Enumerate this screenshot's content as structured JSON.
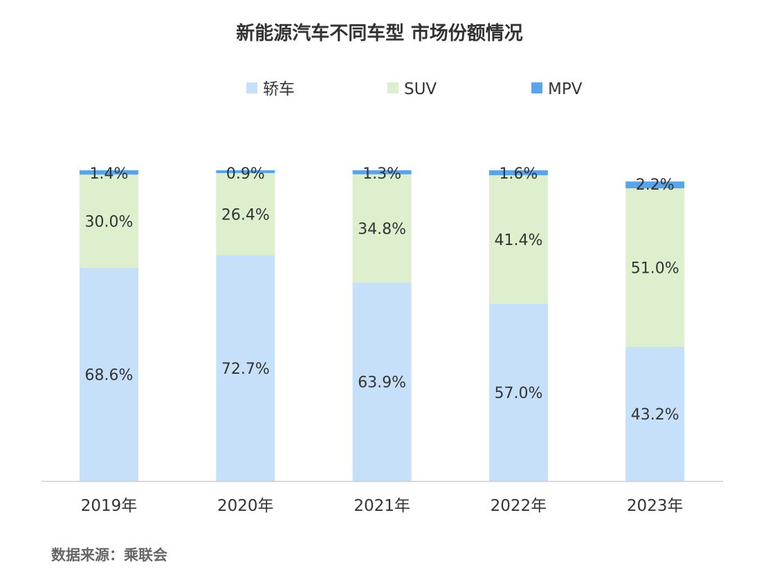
{
  "chart_data": {
    "type": "bar",
    "stacked": true,
    "title": "新能源汽车不同车型  市场份额情况",
    "categories": [
      "2019年",
      "2020年",
      "2021年",
      "2022年",
      "2023年"
    ],
    "series": [
      {
        "name": "轿车",
        "color": "#C6E0FA",
        "values": [
          68.6,
          72.7,
          63.9,
          57.0,
          43.2
        ]
      },
      {
        "name": "SUV",
        "color": "#DDEFCC",
        "values": [
          30.0,
          26.4,
          34.8,
          41.4,
          51.0
        ]
      },
      {
        "name": "MPV",
        "color": "#5AA5EA",
        "values": [
          1.4,
          0.9,
          1.3,
          1.6,
          2.2
        ]
      }
    ],
    "ylim": [
      0,
      100
    ],
    "legend": "top",
    "grid": false,
    "unit": "%"
  },
  "source": "数据来源：乘联会"
}
